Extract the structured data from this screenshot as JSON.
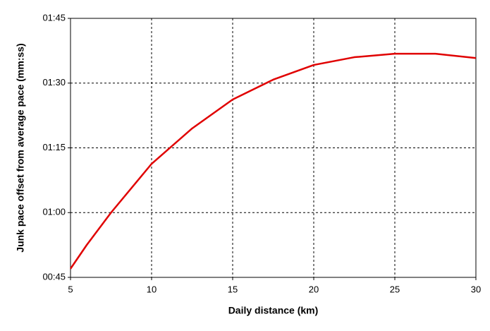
{
  "chart_data": {
    "type": "line",
    "x_label": "Daily distance (km)",
    "y_label": "Junk pace offset from average pace (mm:ss)",
    "x": [
      5,
      6,
      7.5,
      10,
      12.5,
      15,
      17.5,
      20,
      22.5,
      25,
      27.5,
      30
    ],
    "series": [
      {
        "color": "#e00000",
        "values": [
          47,
          52.5,
          60,
          71.3,
          79.5,
          86.2,
          90.8,
          94.2,
          96,
          96.8,
          96.8,
          95.8
        ]
      }
    ],
    "xlim": [
      5,
      30
    ],
    "xticks": [
      5,
      10,
      15,
      20,
      25,
      30
    ],
    "ylim": [
      45,
      105
    ],
    "yticks": [
      {
        "value": 45,
        "label": "00:45"
      },
      {
        "value": 60,
        "label": "01:00"
      },
      {
        "value": 75,
        "label": "01:15"
      },
      {
        "value": 90,
        "label": "01:30"
      },
      {
        "value": 105,
        "label": "01:45"
      }
    ],
    "grid": true
  }
}
